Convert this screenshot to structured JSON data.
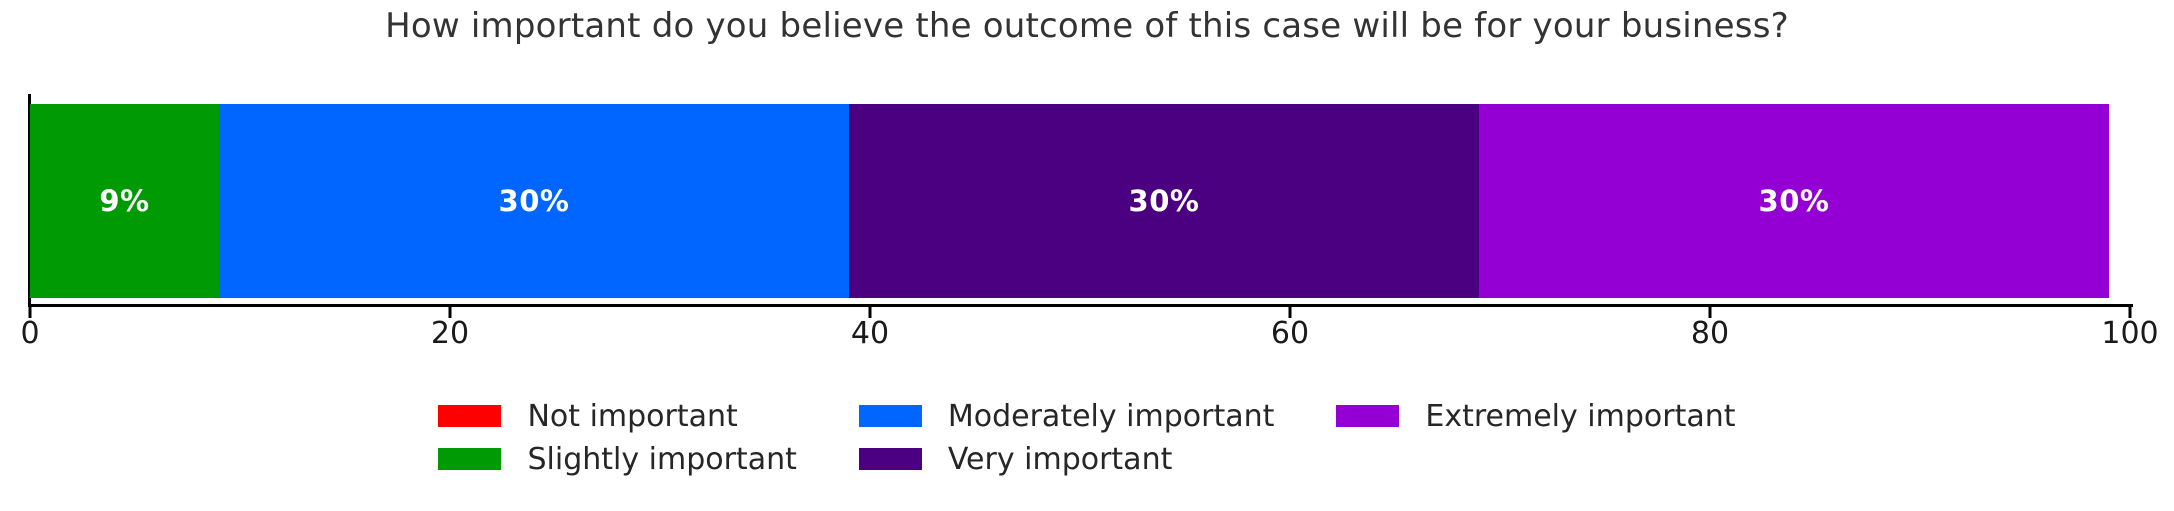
{
  "title": "How important do you believe the outcome of this case will be for your business?",
  "chart_data": {
    "type": "bar",
    "variant": "stacked-horizontal",
    "title": "How important do you believe the outcome of this case will be for your business?",
    "xlabel": "",
    "ylabel": "",
    "xlim": [
      0,
      100
    ],
    "x_ticks": [
      0,
      20,
      40,
      60,
      80,
      100
    ],
    "grid": false,
    "legend_position": "bottom",
    "legend_columns": 3,
    "series": [
      {
        "name": "Not important",
        "value": 0,
        "bar_label": "",
        "color": "#ff0000"
      },
      {
        "name": "Slightly important",
        "value": 9,
        "bar_label": "9%",
        "color": "#009a05"
      },
      {
        "name": "Moderately important",
        "value": 30,
        "bar_label": "30%",
        "color": "#0066ff"
      },
      {
        "name": "Very important",
        "value": 30,
        "bar_label": "30%",
        "color": "#4b0082"
      },
      {
        "name": "Extremely important",
        "value": 30,
        "bar_label": "30%",
        "color": "#9400d3"
      }
    ],
    "legend_layout": [
      [
        0,
        1
      ],
      [
        2,
        3
      ],
      [
        4
      ]
    ],
    "bar_label_color": "#ffffff"
  }
}
